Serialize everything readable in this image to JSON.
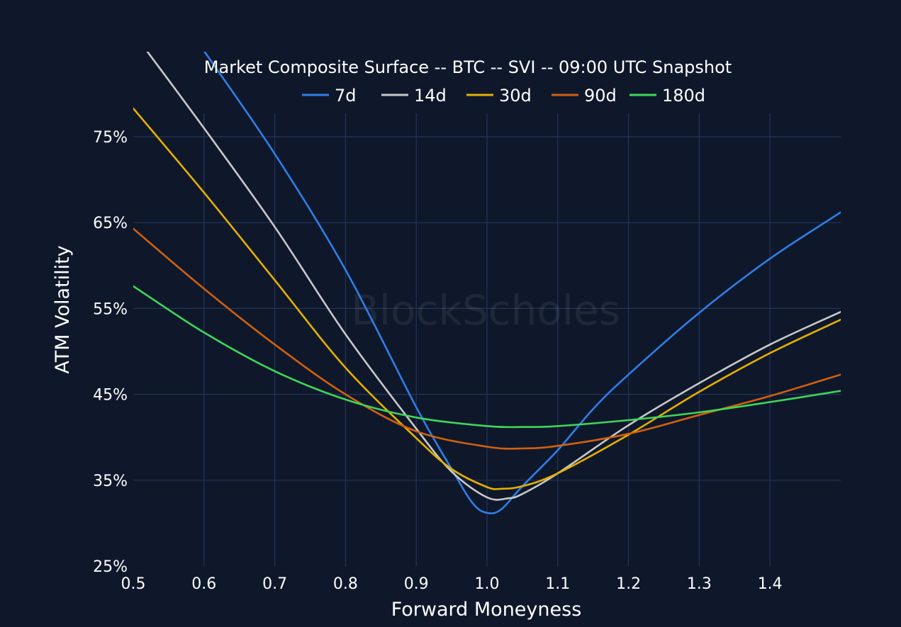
{
  "chart_data": {
    "type": "line",
    "title": "Market Composite Surface -- BTC -- SVI -- 09:00 UTC Snapshot",
    "xlabel": "Forward Moneyness",
    "ylabel": "ATM Volatility",
    "watermark": "BlockScholes",
    "xlim": [
      0.5,
      1.5
    ],
    "ylim": [
      25,
      84.9
    ],
    "x_ticks": [
      0.5,
      0.6,
      0.7,
      0.8,
      0.9,
      1.0,
      1.1,
      1.2,
      1.3,
      1.4
    ],
    "x_tick_labels": [
      "0.5",
      "0.6",
      "0.7",
      "0.8",
      "0.9",
      "1.0",
      "1.1",
      "1.2",
      "1.3",
      "1.4"
    ],
    "y_ticks": [
      25,
      35,
      45,
      55,
      65,
      75
    ],
    "y_tick_labels": [
      "25%",
      "35%",
      "45%",
      "55%",
      "65%",
      "75%"
    ],
    "grid": true,
    "legend_position": "top-center",
    "series": [
      {
        "name": "7d",
        "color": "#2f7ee8",
        "x": [
          0.6,
          0.7,
          0.8,
          0.9,
          0.95,
          0.98,
          1.0,
          1.02,
          1.05,
          1.1,
          1.15,
          1.2,
          1.3,
          1.4,
          1.5
        ],
        "y": [
          85,
          73,
          59.5,
          43.5,
          36.3,
          32.3,
          31.2,
          31.6,
          34.3,
          38.5,
          43.3,
          47.3,
          54.5,
          60.8,
          66.2
        ]
      },
      {
        "name": "14d",
        "color": "#c8c8c8",
        "x": [
          0.52,
          0.6,
          0.7,
          0.8,
          0.9,
          0.95,
          1.0,
          1.03,
          1.05,
          1.1,
          1.2,
          1.3,
          1.4,
          1.5
        ],
        "y": [
          84.9,
          76,
          64.5,
          52,
          41,
          36,
          33,
          32.9,
          33.4,
          35.8,
          41.4,
          46.3,
          50.8,
          54.6
        ]
      },
      {
        "name": "30d",
        "color": "#e5b000",
        "x": [
          0.5,
          0.6,
          0.7,
          0.8,
          0.9,
          0.95,
          1.0,
          1.02,
          1.05,
          1.1,
          1.2,
          1.3,
          1.4,
          1.5
        ],
        "y": [
          78.3,
          68.5,
          58.3,
          48.1,
          39.9,
          36.3,
          34.2,
          34,
          34.3,
          35.8,
          40.3,
          45.3,
          49.8,
          53.7
        ]
      },
      {
        "name": "90d",
        "color": "#d2600f",
        "x": [
          0.5,
          0.6,
          0.7,
          0.8,
          0.9,
          1.0,
          1.05,
          1.1,
          1.2,
          1.3,
          1.4,
          1.5
        ],
        "y": [
          64.3,
          57.3,
          50.8,
          45,
          40.7,
          38.9,
          38.7,
          39,
          40.4,
          42.6,
          44.8,
          47.3
        ]
      },
      {
        "name": "180d",
        "color": "#3fd659",
        "x": [
          0.5,
          0.6,
          0.7,
          0.8,
          0.9,
          1.0,
          1.05,
          1.1,
          1.2,
          1.3,
          1.4,
          1.5
        ],
        "y": [
          57.6,
          52.2,
          47.7,
          44.4,
          42.3,
          41.3,
          41.2,
          41.3,
          42,
          42.9,
          44.1,
          45.4
        ]
      }
    ]
  }
}
